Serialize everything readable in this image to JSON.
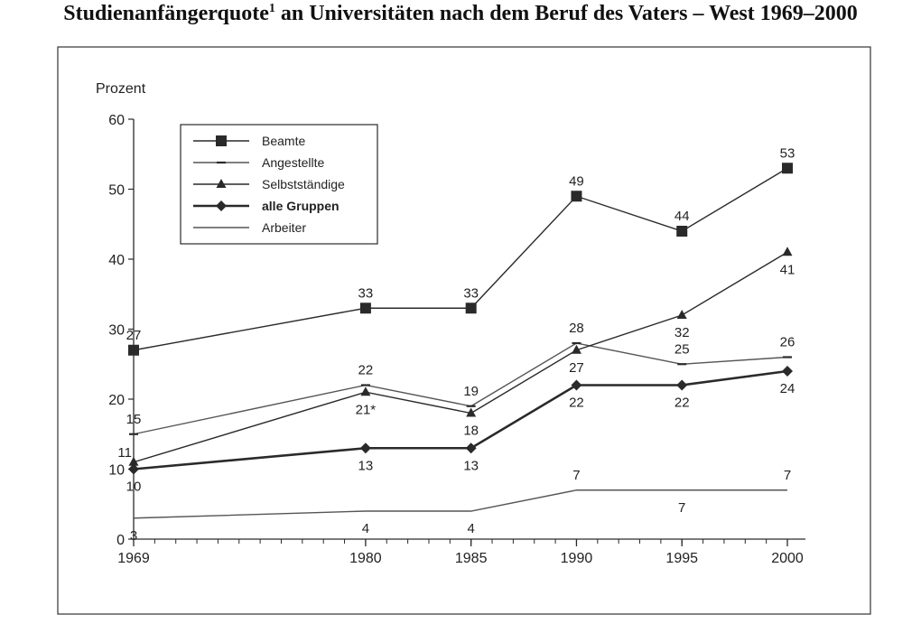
{
  "title": {
    "text_before": "Studienanfängerquote",
    "superscript": "1",
    "text_after": " an Universitäten nach dem Beruf des Vaters – West 1969–2000"
  },
  "chart_data": {
    "type": "line",
    "title": "Studienanfängerquote1 an Universitäten nach dem Beruf des Vaters – West 1969–2000",
    "ylabel": "Prozent",
    "xlabel": "",
    "x": [
      1969,
      1980,
      1985,
      1990,
      1995,
      2000
    ],
    "x_tick_labels": [
      "1969",
      "1980",
      "1985",
      "1990",
      "1995",
      "2000"
    ],
    "xlim": [
      1969,
      2000
    ],
    "ylim": [
      0,
      60
    ],
    "y_ticks": [
      0,
      10,
      20,
      30,
      40,
      50,
      60
    ],
    "grid": false,
    "legend_placement": "top-left",
    "series": [
      {
        "name": "Beamte",
        "marker": "square",
        "bold": false,
        "values": [
          27,
          33,
          33,
          49,
          44,
          53
        ],
        "labels": [
          "27",
          "33",
          "33",
          "49",
          "44",
          "53"
        ],
        "label_pos": [
          "above",
          "above",
          "above",
          "above",
          "above",
          "above"
        ]
      },
      {
        "name": "Angestellte",
        "marker": "dash",
        "bold": false,
        "values": [
          15,
          22,
          19,
          28,
          25,
          26
        ],
        "labels": [
          "15",
          "22",
          "19",
          "28",
          "25",
          "26"
        ],
        "label_pos": [
          "above",
          "above",
          "above",
          "above",
          "above",
          "above"
        ]
      },
      {
        "name": "Selbstständige",
        "marker": "triangle",
        "bold": false,
        "values": [
          11,
          21,
          18,
          27,
          32,
          41
        ],
        "labels": [
          "11",
          "21*",
          "18",
          "27",
          "32",
          "41"
        ],
        "label_pos": [
          "left",
          "below",
          "below",
          "below",
          "below",
          "below"
        ]
      },
      {
        "name": "alle Gruppen",
        "marker": "diamond",
        "bold": true,
        "values": [
          10,
          13,
          13,
          22,
          22,
          24
        ],
        "labels": [
          "10",
          "13",
          "13",
          "22",
          "22",
          "24"
        ],
        "label_pos": [
          "below",
          "below",
          "below",
          "below",
          "below",
          "below"
        ]
      },
      {
        "name": "Arbeiter",
        "marker": "none",
        "bold": false,
        "values": [
          3,
          4,
          4,
          7,
          7,
          7
        ],
        "labels": [
          "3",
          "4",
          "4",
          "7",
          "7",
          "7"
        ],
        "label_pos": [
          "below",
          "below",
          "below",
          "above",
          "below",
          "above"
        ]
      }
    ]
  },
  "colors": {
    "line": "#2a2a2a",
    "light_line": "#555555",
    "frame": "#333333",
    "background": "#ffffff"
  }
}
